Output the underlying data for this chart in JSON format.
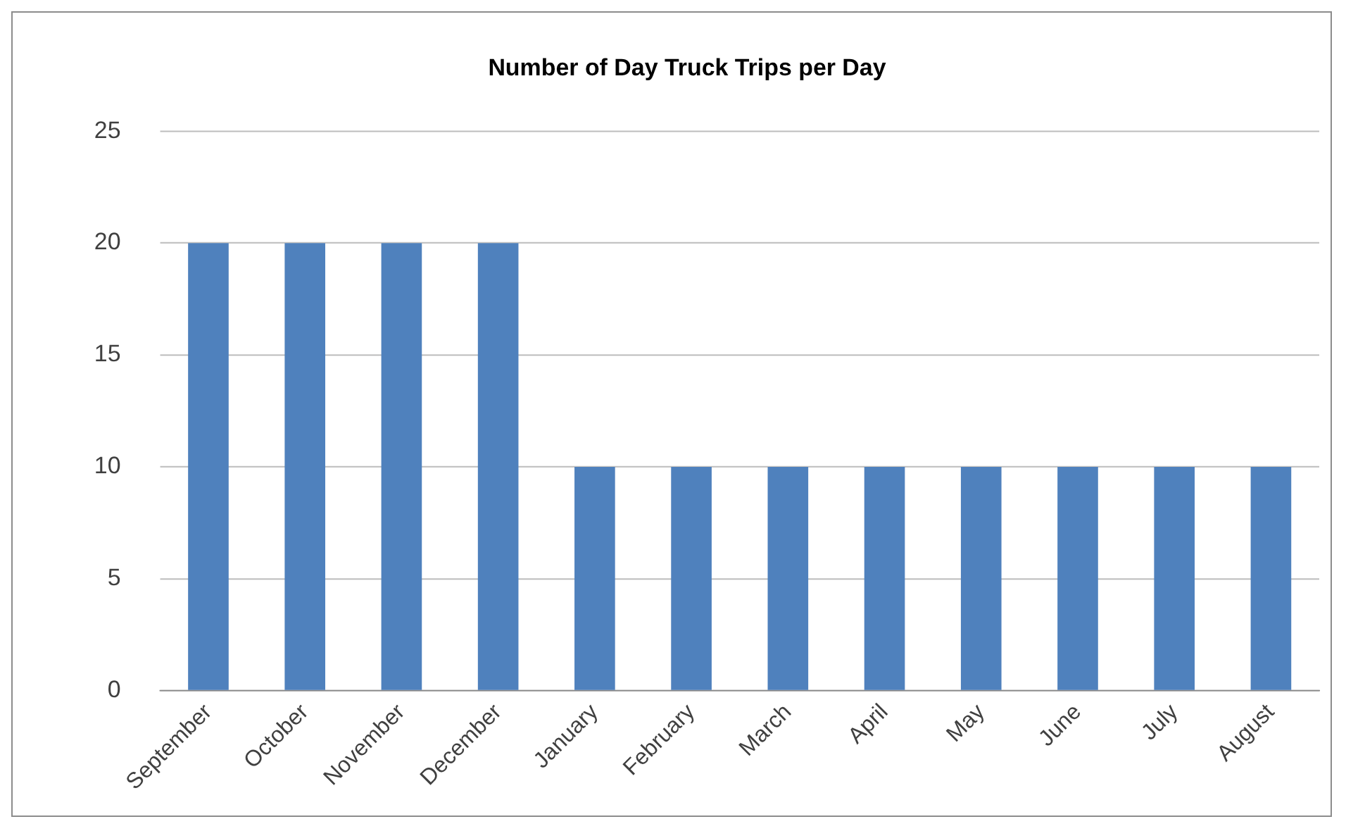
{
  "chart_data": {
    "type": "bar",
    "title": "Number of Day Truck Trips per Day",
    "categories": [
      "September",
      "October",
      "November",
      "December",
      "January",
      "February",
      "March",
      "April",
      "May",
      "June",
      "July",
      "August"
    ],
    "values": [
      20,
      20,
      20,
      20,
      10,
      10,
      10,
      10,
      10,
      10,
      10,
      10
    ],
    "color": "#4f81bd",
    "ylim": [
      0,
      25
    ],
    "yticks": [
      0,
      5,
      10,
      15,
      20,
      25
    ],
    "grid": "y",
    "legend": false
  }
}
